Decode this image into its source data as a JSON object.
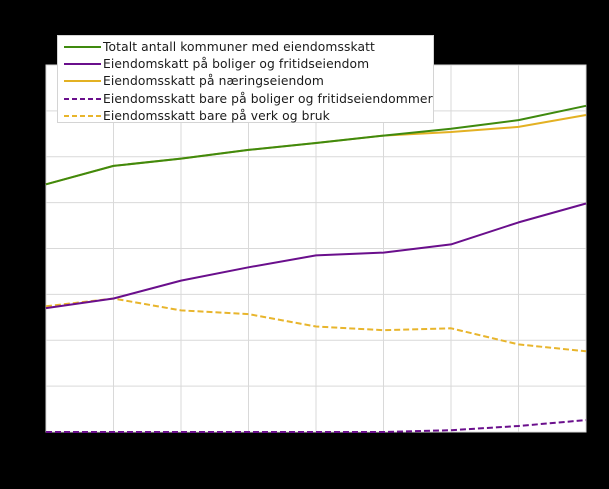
{
  "chart_data": {
    "type": "line",
    "title": "",
    "xlabel": "",
    "ylabel": "",
    "x": [
      "1",
      "2",
      "3",
      "4",
      "5",
      "6",
      "7",
      "8",
      "9"
    ],
    "x_note": "Tick labels not legible in image (rendered black on black); 9 evenly spaced points",
    "ylim": [
      0,
      8
    ],
    "y_unit_note": "Values in gridline units (8 equal intervals); absolute tick labels not visible",
    "grid": true,
    "legend_position": "top-left inside",
    "series": [
      {
        "name": "Totalt antall kommuner med eiendomsskatt",
        "color": "#3f8a0e",
        "dash": "solid",
        "values": [
          5.4,
          5.8,
          5.96,
          6.15,
          6.3,
          6.46,
          6.61,
          6.8,
          7.11
        ]
      },
      {
        "name": "Eiendomskatt på boliger og fritidseiendom",
        "color": "#6a0f8c",
        "dash": "solid",
        "values": [
          2.7,
          2.91,
          3.3,
          3.59,
          3.85,
          3.91,
          4.09,
          4.57,
          4.98
        ]
      },
      {
        "name": "Eiendomsskatt på næringseiendom",
        "color": "#e3b123",
        "dash": "solid",
        "values": [
          5.4,
          5.8,
          5.96,
          6.15,
          6.3,
          6.46,
          6.54,
          6.65,
          6.91
        ]
      },
      {
        "name": "Eiendomsskatt bare på boliger og fritidseiendommer",
        "color": "#6a0f8c",
        "dash": "dashed",
        "values": [
          0,
          0,
          0,
          0,
          0,
          0,
          0.04,
          0.13,
          0.26
        ]
      },
      {
        "name": "Eiendomsskatt bare på verk og bruk",
        "color": "#e8b52c",
        "dash": "dashed",
        "values": [
          2.74,
          2.91,
          2.65,
          2.57,
          2.3,
          2.22,
          2.26,
          1.91,
          1.76
        ]
      }
    ]
  },
  "legend": {
    "items": [
      {
        "label": "Totalt antall kommuner med eiendomsskatt"
      },
      {
        "label": "Eiendomskatt på boliger og fritidseiendom"
      },
      {
        "label": "Eiendomsskatt på næringseiendom"
      },
      {
        "label": "Eiendomsskatt bare på boliger og fritidseiendommer"
      },
      {
        "label": "Eiendomsskatt bare på verk og bruk"
      }
    ]
  },
  "colors": {
    "background": "#000000",
    "plot_background": "#ffffff",
    "grid": "#d9d9d9"
  }
}
